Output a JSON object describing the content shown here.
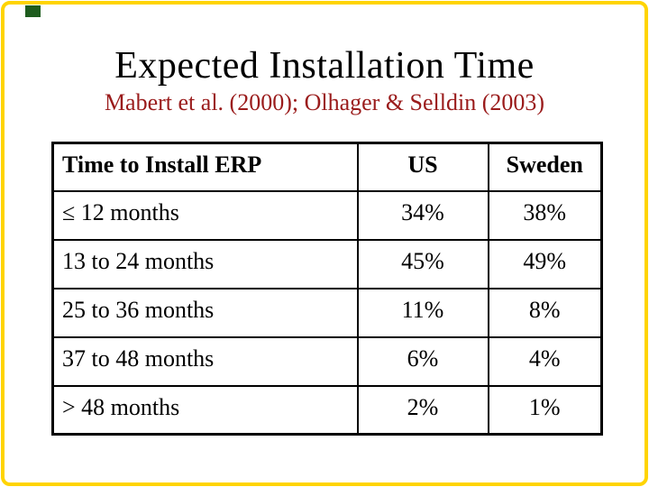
{
  "slide": {
    "title": "Expected Installation Time",
    "subtitle": "Mabert et al. (2000); Olhager & Selldin (2003)",
    "colors": {
      "background": "#ffffff",
      "frame": "#ffd400",
      "corner_accent": "#1e5c1e",
      "title_text": "#000000",
      "subtitle_text": "#9a1b1b",
      "table_border": "#000000",
      "table_text": "#000000"
    }
  },
  "table": {
    "columns": [
      "Time to Install ERP",
      "US",
      "Sweden"
    ],
    "rows": [
      {
        "label": "≤ 12 months",
        "us": "34%",
        "sweden": "38%"
      },
      {
        "label": "13 to 24 months",
        "us": "45%",
        "sweden": "49%"
      },
      {
        "label": "25 to 36 months",
        "us": "11%",
        "sweden": "8%"
      },
      {
        "label": "37 to 48 months",
        "us": "6%",
        "sweden": "4%"
      },
      {
        "label": "> 48 months",
        "us": "2%",
        "sweden": "1%"
      }
    ]
  }
}
